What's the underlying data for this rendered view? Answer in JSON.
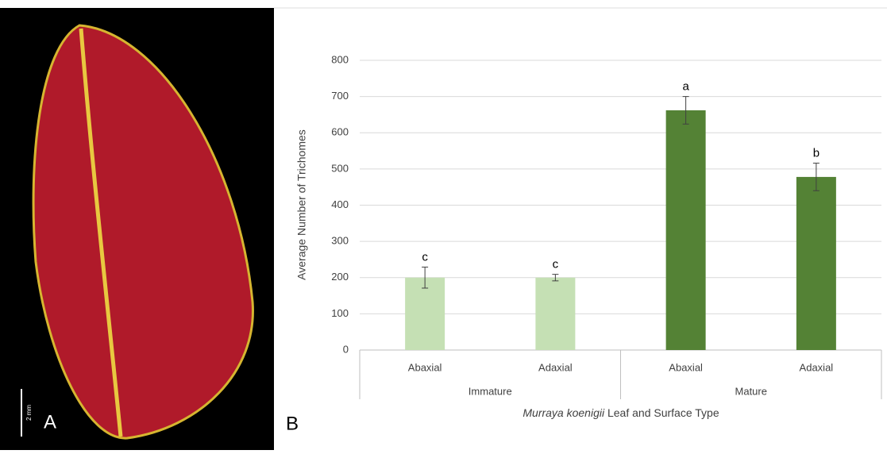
{
  "figure": {
    "panel_a_label": "A",
    "scale_bar_label": "2 mm",
    "panel_b_label": "B"
  },
  "chart_data": {
    "type": "bar",
    "y_label": "Average Number of Trichomes",
    "x_label_italic": "Murraya koenigii",
    "x_label_rest": "Leaf and Surface Type",
    "categories": [
      "Abaxial",
      "Adaxial",
      "Abaxial",
      "Adaxial"
    ],
    "groups": [
      {
        "name": "Immature",
        "span": 2
      },
      {
        "name": "Mature",
        "span": 2
      }
    ],
    "values": [
      200,
      200,
      662,
      478
    ],
    "errors": [
      29,
      9,
      38,
      38
    ],
    "significance_labels": [
      "c",
      "c",
      "a",
      "b"
    ],
    "colors": [
      "#c5e0b4",
      "#c5e0b4",
      "#548235",
      "#548235"
    ],
    "ylim": [
      0,
      800
    ],
    "yticks": [
      0,
      100,
      200,
      300,
      400,
      500,
      600,
      700,
      800
    ],
    "grid": true
  }
}
